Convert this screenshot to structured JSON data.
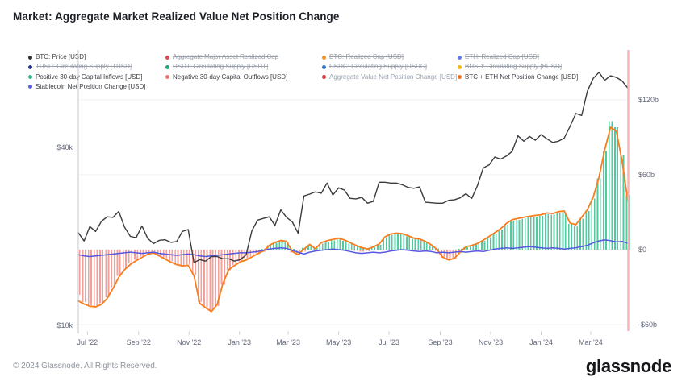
{
  "header": {
    "title": "Market: Aggregate Market Realized Value Net Position Change"
  },
  "legend": {
    "items": [
      {
        "label": "BTC: Price [USD]",
        "color": "#2e2e33",
        "struck": false
      },
      {
        "label": "Aggregate Major Asset Realized Cap",
        "color": "#e5484d",
        "struck": true
      },
      {
        "label": "BTC: Realized Cap [USD]",
        "color": "#f7931a",
        "struck": true
      },
      {
        "label": "ETH: Realized Cap [USD]",
        "color": "#5f7de8",
        "struck": true
      },
      {
        "label": "TUSD: Circulating Supply [TUSD]",
        "color": "#283593",
        "struck": true
      },
      {
        "label": "USDT: Circulating Supply [USDT]",
        "color": "#1ba27a",
        "struck": true
      },
      {
        "label": "USDC: Circulating Supply [USDC]",
        "color": "#2775ca",
        "struck": true
      },
      {
        "label": "BUSD: Circulating Supply [BUSD]",
        "color": "#f0b90b",
        "struck": true
      },
      {
        "label": "Positive 30-day Capital Inflows [USD]",
        "color": "#2dbd85",
        "struck": false
      },
      {
        "label": "Negative 30-day Capital Outflows [USD]",
        "color": "#f4706b",
        "struck": false
      },
      {
        "label": "Aggregate Value Net Position Change [USD]",
        "color": "#e02d33",
        "struck": true
      },
      {
        "label": "BTC + ETH Net Position Change [USD]",
        "color": "#f97316",
        "struck": false
      },
      {
        "label": "Stablecoin Net Position Change [USD]",
        "color": "#5b5ce2",
        "struck": false
      }
    ]
  },
  "chart_data": {
    "type": "mixed",
    "n_points": 96,
    "x_labels": [
      {
        "label": "Jul '22",
        "pos": 1.57
      },
      {
        "label": "Sep '22",
        "pos": 10.43
      },
      {
        "label": "Nov '22",
        "pos": 19.14
      },
      {
        "label": "Jan '23",
        "pos": 27.86
      },
      {
        "label": "Mar '23",
        "pos": 36.29
      },
      {
        "label": "May '23",
        "pos": 45.0
      },
      {
        "label": "Jul '23",
        "pos": 53.71
      },
      {
        "label": "Sep '23",
        "pos": 62.57
      },
      {
        "label": "Nov '23",
        "pos": 71.29
      },
      {
        "label": "Jan '24",
        "pos": 80.0
      },
      {
        "label": "Mar '24",
        "pos": 88.57
      }
    ],
    "left_axis": {
      "scale": "log",
      "unit": "USD (BTC price, thousands)",
      "ticks": [
        {
          "label": "$40k",
          "value": 40
        },
        {
          "label": "$10k",
          "value": 10
        }
      ]
    },
    "right_axis": {
      "scale": "linear",
      "unit": "USD billions",
      "ticks": [
        {
          "label": "$120b",
          "value": 120
        },
        {
          "label": "$60b",
          "value": 60
        },
        {
          "label": "$0",
          "value": 0
        },
        {
          "label": "-$60b",
          "value": -60
        }
      ]
    },
    "cursor": {
      "color": "#f7b3b6"
    },
    "series": [
      {
        "id": "negative-outflows-bars",
        "name": "Negative 30-day Capital Outflows [USD]",
        "render": "bars",
        "axis": "right",
        "color": "#f4877f",
        "opacity": 0.8,
        "values": [
          -36,
          -42,
          -44.5,
          -45,
          -43,
          -38,
          -30,
          -21,
          -15,
          -11,
          -8,
          -5.5,
          -3,
          -2.2,
          -4.5,
          -7,
          -9.5,
          -11.5,
          -12.5,
          -12,
          -20,
          -42,
          -46,
          -49,
          -45,
          -28,
          -16.5,
          -12.5,
          -9.5,
          -8,
          -5.5,
          -3,
          -1.5,
          0,
          0,
          0,
          -0.5,
          -2.2,
          -4.5,
          -1.5,
          0,
          -0.8,
          0,
          0,
          0,
          0,
          0,
          -0.5,
          -1,
          -1.5,
          -1.2,
          0,
          0,
          0,
          0,
          0,
          0,
          0,
          0,
          0,
          0,
          0,
          -1,
          -6.5,
          -8.5,
          -7.5,
          -2.5,
          0,
          0,
          0,
          0,
          0,
          0,
          0,
          0,
          0,
          0,
          0,
          0,
          0,
          0,
          0,
          0,
          0,
          0,
          0,
          0,
          0,
          0,
          0,
          0,
          0,
          0,
          0,
          0,
          0
        ]
      },
      {
        "id": "positive-inflows-bars",
        "name": "Positive 30-day Capital Inflows [USD]",
        "render": "bars",
        "axis": "right",
        "color": "#35c08e",
        "opacity": 0.85,
        "values": [
          0,
          0,
          0,
          0,
          0,
          0,
          0,
          0,
          0,
          0,
          0,
          0,
          0,
          0,
          0,
          0,
          0,
          0,
          0,
          0,
          0,
          0,
          0,
          0,
          0,
          0,
          0,
          0,
          0,
          0,
          0,
          0,
          0.6,
          3.6,
          5.5,
          7,
          6.2,
          0.8,
          0,
          1.5,
          3.5,
          1.2,
          5,
          6.5,
          7.5,
          8.5,
          7,
          5,
          3,
          1.5,
          0.8,
          1.8,
          4,
          9.5,
          12,
          12.6,
          12.2,
          10.6,
          8.6,
          8,
          6,
          3.5,
          1,
          0,
          0,
          0,
          0.5,
          2,
          3,
          4.5,
          7,
          10,
          13,
          16,
          20,
          23,
          24,
          25,
          26,
          26.5,
          27,
          28.5,
          28,
          29.5,
          30,
          20.5,
          19,
          25,
          31,
          41,
          57,
          79,
          103,
          98,
          76,
          44
        ]
      },
      {
        "id": "btc-eth-net-position-line",
        "name": "BTC + ETH Net Position Change [USD]",
        "render": "line",
        "axis": "right",
        "color": "#f97c1d",
        "width": 1.8,
        "values": [
          -41,
          -43.5,
          -45.3,
          -45.8,
          -43.8,
          -39,
          -31,
          -22,
          -16,
          -11.8,
          -8.8,
          -6.2,
          -3.6,
          -2.6,
          -5,
          -7.5,
          -10,
          -12,
          -13,
          -12.6,
          -21,
          -43,
          -46.5,
          -49.5,
          -44,
          -27,
          -16,
          -12.8,
          -9.8,
          -8.3,
          -5.8,
          -3.2,
          -1,
          3.4,
          5.8,
          7.4,
          6.6,
          -1.5,
          -4,
          0.5,
          4.2,
          0.8,
          5.6,
          7.2,
          8.2,
          9.2,
          7.8,
          5.6,
          3.4,
          1.6,
          0.6,
          2.2,
          4.6,
          10.2,
          12.6,
          13.2,
          12.8,
          11.2,
          9.2,
          8.6,
          6.6,
          4,
          0.2,
          -6,
          -8.2,
          -7,
          -2,
          2.4,
          3.4,
          5,
          7.6,
          10.6,
          13.6,
          16.8,
          21,
          24,
          25,
          26,
          26.8,
          27.4,
          28,
          29.4,
          29,
          30.4,
          31,
          21.4,
          20,
          26,
          32,
          42,
          58,
          80,
          98,
          95,
          71,
          39
        ]
      },
      {
        "id": "stablecoin-net-position-line",
        "name": "Stablecoin Net Position Change [USD]",
        "render": "line",
        "axis": "right",
        "color": "#5558e0",
        "width": 1.5,
        "values": [
          -4,
          -5,
          -5.5,
          -5,
          -4.5,
          -4,
          -3.5,
          -3,
          -2.5,
          -2,
          -2.5,
          -3,
          -2.5,
          -2,
          -3,
          -3.5,
          -4,
          -4.5,
          -4,
          -3.5,
          -4,
          -5,
          -5.5,
          -5,
          -4.5,
          -4,
          -3.5,
          -3,
          -2.5,
          -2.5,
          -2,
          -1.5,
          -0.5,
          0.5,
          1,
          1.5,
          1,
          -0.5,
          -2,
          -3.5,
          -2,
          -1,
          -0.5,
          0,
          0.5,
          0,
          -0.5,
          -1.5,
          -2.5,
          -3,
          -2.5,
          -2,
          -2.5,
          -2,
          -1,
          -0.5,
          0,
          -0.5,
          -1,
          -1.5,
          -1,
          -1.5,
          -2.5,
          -2,
          -2.5,
          -2,
          -1.5,
          -2,
          -1.5,
          -1,
          -1.5,
          -0.5,
          0.5,
          1,
          1.5,
          1,
          1.5,
          2,
          2.5,
          2,
          1.5,
          1,
          1.5,
          1,
          0.5,
          1,
          1.5,
          2.5,
          3.5,
          5.5,
          7,
          7.8,
          7.2,
          6.2,
          6.6,
          5.2
        ]
      },
      {
        "id": "btc-price-line",
        "name": "BTC: Price [USD]",
        "render": "line",
        "axis": "left",
        "color": "#3b3b40",
        "width": 1.4,
        "values": [
          20.6,
          19.3,
          21.6,
          20.8,
          22.5,
          23.3,
          23.2,
          24.3,
          21.5,
          20,
          19.8,
          21.7,
          19.7,
          18.9,
          19.4,
          19.5,
          19.1,
          19.2,
          20.8,
          21.1,
          16.3,
          16.7,
          16.5,
          17.1,
          17.1,
          16.8,
          16.8,
          16.5,
          16.7,
          17.3,
          20.9,
          22.7,
          23,
          23.3,
          21.8,
          24.6,
          23.2,
          22.4,
          20.5,
          27.4,
          27.8,
          28.3,
          28,
          30.3,
          27.6,
          29.2,
          28.7,
          26.9,
          26.8,
          27.1,
          25.9,
          26.3,
          30.5,
          30.5,
          30.3,
          30.3,
          29.9,
          29.3,
          29.1,
          29.4,
          26.1,
          26,
          25.9,
          25.9,
          26.5,
          26.6,
          27,
          27.9,
          26.9,
          29.7,
          34.1,
          34.9,
          37.1,
          36.5,
          37.4,
          38.8,
          43.8,
          42,
          43.6,
          42.3,
          44.2,
          42.8,
          41.6,
          42,
          43,
          47.1,
          52.1,
          51.3,
          62,
          68.5,
          71.8,
          67.5,
          69.9,
          69,
          67.2,
          63.5
        ]
      }
    ]
  },
  "footer": {
    "copyright": "© 2024 Glassnode. All Rights Reserved.",
    "brand": "glassnode"
  }
}
